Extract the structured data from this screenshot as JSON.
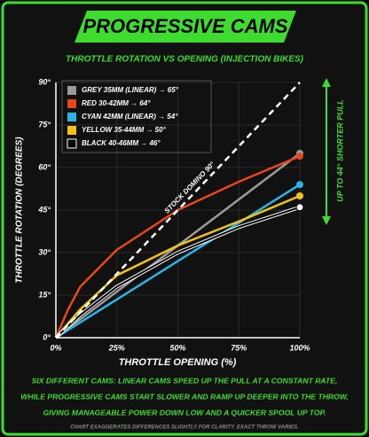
{
  "chart_data": {
    "type": "line",
    "title": "PROGRESSIVE CAMS",
    "subtitle": "THROTTLE ROTATION VS OPENING (INJECTION BIKES)",
    "x_label": "THROTTLE OPENING (%)",
    "y_label": "THROTTLE ROTATION (DEGREES)",
    "x": [
      0,
      5,
      10,
      25,
      50,
      75,
      100
    ],
    "series": [
      {
        "name": "GREY 35MM (LINEAR) → 65°",
        "color": "#9b9b9b",
        "values": [
          0,
          3.25,
          6.5,
          16.25,
          32.5,
          48.75,
          65
        ]
      },
      {
        "name": "RED 30-42MM → 64°",
        "color": "#e8471c",
        "values": [
          0,
          10,
          18,
          31,
          45,
          55,
          64
        ]
      },
      {
        "name": "CYAN 42MM (LINEAR) → 54°",
        "color": "#29b6e6",
        "values": [
          0,
          2.7,
          5.4,
          13.5,
          27,
          40.5,
          54
        ]
      },
      {
        "name": "YELLOW 35-44MM → 50°",
        "color": "#f2c314",
        "values": [
          0,
          5,
          10,
          22,
          32.5,
          41,
          50
        ]
      },
      {
        "name": "BLACK 40-46MM → 46°",
        "color": "#000000",
        "values": [
          0,
          4,
          8,
          18,
          30,
          39,
          46
        ]
      },
      {
        "name": "STOCK DOMINO 90°",
        "color": "#ffffff",
        "dash": true,
        "values": [
          0,
          4.5,
          9,
          22.5,
          45,
          67.5,
          90
        ]
      }
    ],
    "xlim": [
      0,
      100
    ],
    "xticks": [
      {
        "value": 0,
        "label": "0%"
      },
      {
        "value": 25,
        "label": "25%"
      },
      {
        "value": 50,
        "label": "50%"
      },
      {
        "value": 75,
        "label": "75%"
      },
      {
        "value": 100,
        "label": "100%"
      }
    ],
    "ylim": [
      0,
      90
    ],
    "yticks": [
      {
        "value": 0,
        "label": "0°"
      },
      {
        "value": 15,
        "label": "15°"
      },
      {
        "value": 30,
        "label": "30°"
      },
      {
        "value": 45,
        "label": "45°"
      },
      {
        "value": 60,
        "label": "60°"
      },
      {
        "value": 75,
        "label": "75°"
      },
      {
        "value": 90,
        "label": "90°"
      }
    ],
    "grid": true,
    "legend": "upper-left",
    "annotation": "UP TO 44° SHORTER PULL",
    "caption": [
      "SIX DIFFERENT CAMS: LINEAR CAMS SPEED UP THE PULL AT A CONSTANT RATE,",
      "WHILE PROGRESSIVE CAMS START SLOWER AND RAMP UP DEEPER INTO THE THROW,",
      "GIVING MANAGEABLE POWER DOWN LOW AND A QUICKER SPOOL UP TOP."
    ],
    "footnote": "CHART EXAGGERATES DIFFERENCES SLIGHTLY FOR CLARITY. EXACT THROW VARIES."
  }
}
